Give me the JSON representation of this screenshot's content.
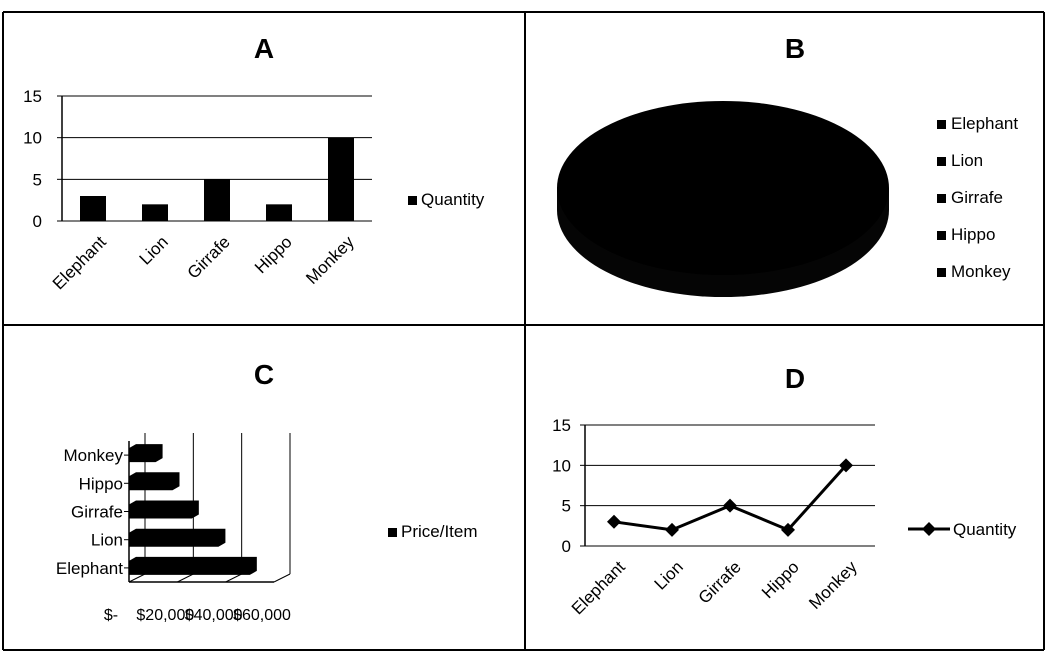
{
  "chart_data": [
    {
      "id": "A",
      "type": "bar",
      "title": "A",
      "categories": [
        "Elephant",
        "Lion",
        "Girrafe",
        "Hippo",
        "Monkey"
      ],
      "series": [
        {
          "name": "Quantity",
          "values": [
            3,
            2,
            5,
            2,
            10
          ]
        }
      ],
      "ylim": [
        0,
        15
      ],
      "yticks": [
        0,
        5,
        10,
        15
      ],
      "grid": true,
      "legend": "right"
    },
    {
      "id": "B",
      "type": "pie",
      "title": "B",
      "categories": [
        "Elephant",
        "Lion",
        "Girrafe",
        "Hippo",
        "Monkey"
      ],
      "style": "3d",
      "legend": "right"
    },
    {
      "id": "C",
      "type": "bar",
      "orientation": "horizontal",
      "title": "C",
      "categories": [
        "Elephant",
        "Lion",
        "Girrafe",
        "Hippo",
        "Monkey"
      ],
      "series": [
        {
          "name": "Price/Item",
          "values": [
            50000,
            37000,
            26000,
            18000,
            11000
          ]
        }
      ],
      "xlim": [
        0,
        60000
      ],
      "xticks": [
        0,
        20000,
        40000,
        60000
      ],
      "xtick_labels": [
        "$-",
        "$20,000",
        "$40,000",
        "$60,000"
      ],
      "grid": true,
      "style": "3d",
      "legend": "right"
    },
    {
      "id": "D",
      "type": "line",
      "title": "D",
      "categories": [
        "Elephant",
        "Lion",
        "Girrafe",
        "Hippo",
        "Monkey"
      ],
      "series": [
        {
          "name": "Quantity",
          "values": [
            3,
            2,
            5,
            2,
            10
          ]
        }
      ],
      "ylim": [
        0,
        15
      ],
      "yticks": [
        0,
        5,
        10,
        15
      ],
      "grid": true,
      "legend": "right",
      "marker": "diamond"
    }
  ]
}
